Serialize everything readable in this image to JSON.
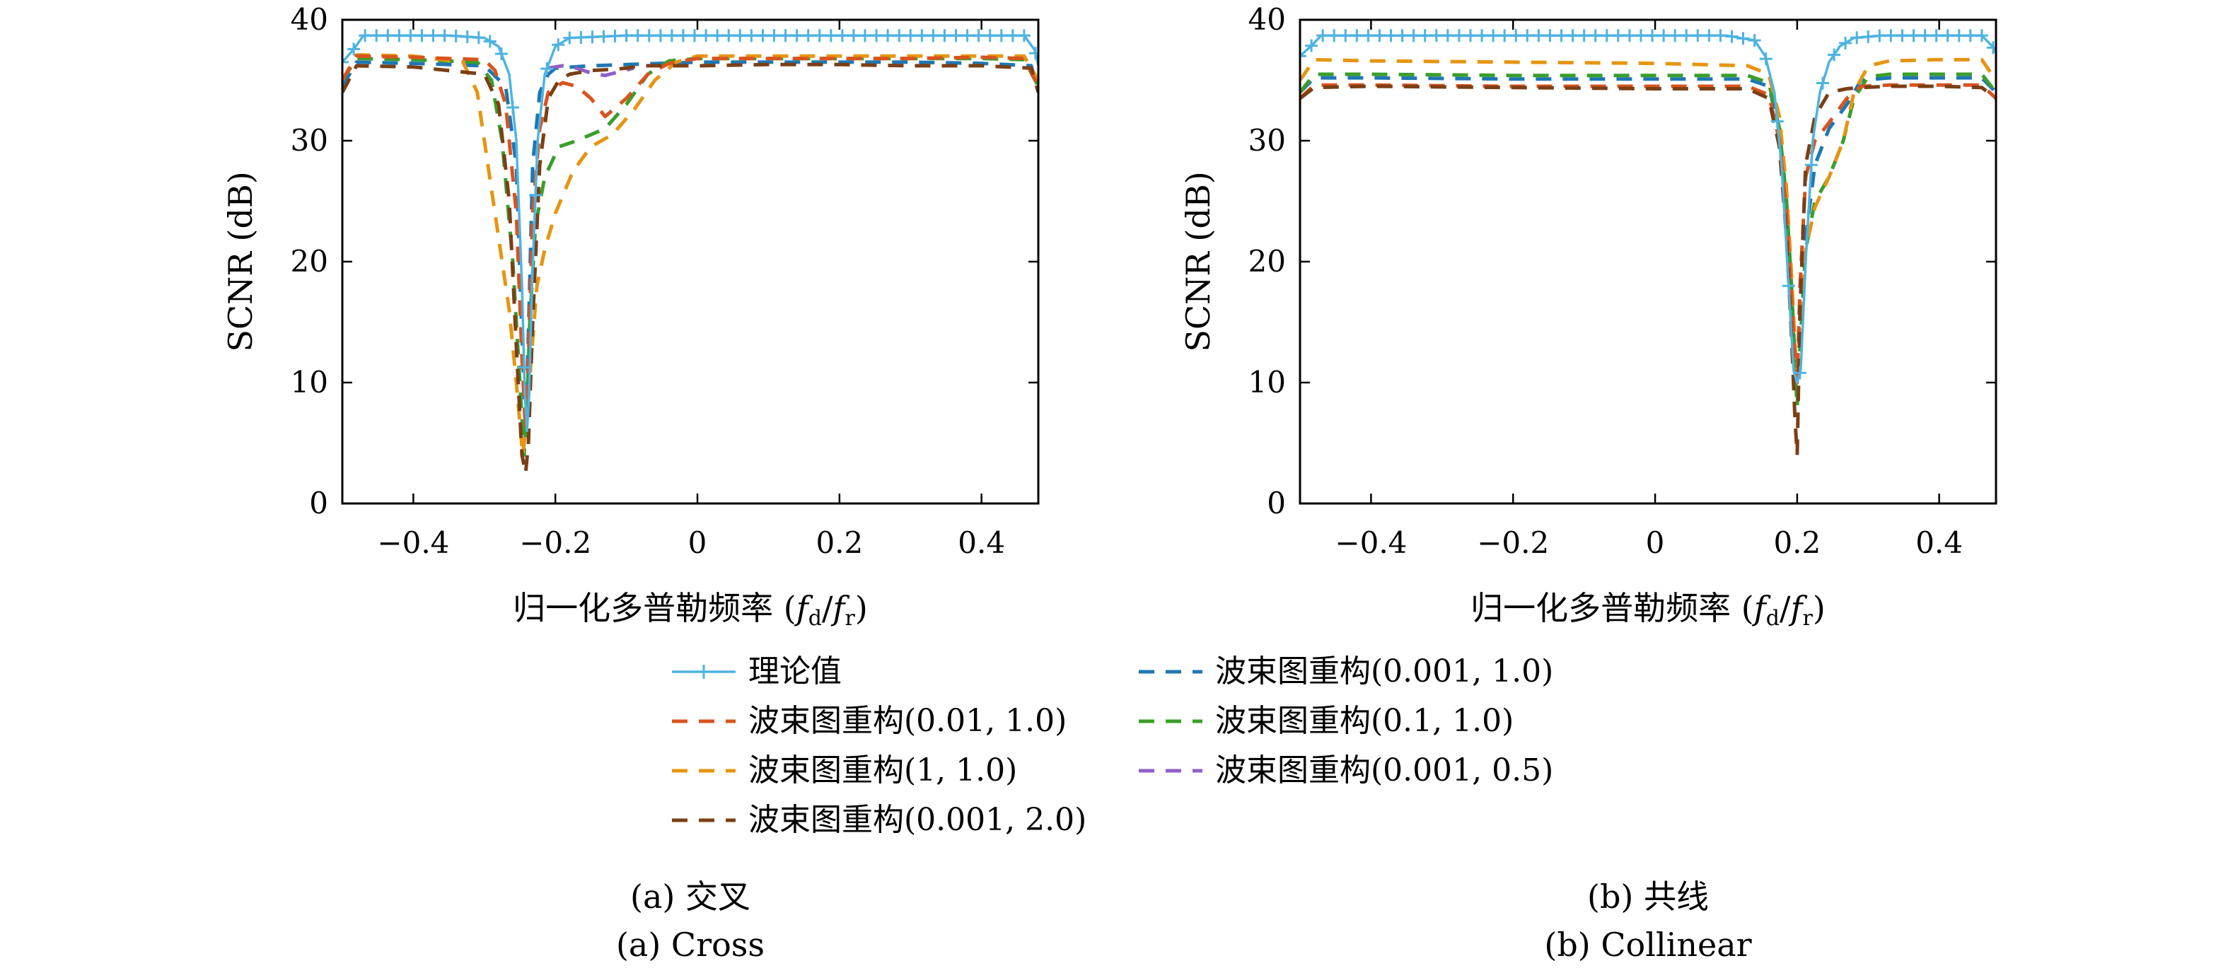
{
  "colors": {
    "theory": "#4eb3e0",
    "bf_0.01_1.0": "#d9541e",
    "bf_1_1.0": "#e69512",
    "bf_0.001_2.0": "#7b3f15",
    "bf_0.001_1.0": "#1f77b4",
    "bf_0.1_1.0": "#3a9e2a",
    "bf_0.001_0.5": "#8f5fc6"
  },
  "legend": {
    "items": [
      {
        "key": "theory",
        "label": "理论值",
        "style": "solid-marker"
      },
      {
        "key": "bf_0.001_1.0",
        "label": "波束图重构(0.001, 1.0)",
        "style": "dashed"
      },
      {
        "key": "bf_0.01_1.0",
        "label": "波束图重构(0.01, 1.0)",
        "style": "dashed"
      },
      {
        "key": "bf_0.1_1.0",
        "label": "波束图重构(0.1, 1.0)",
        "style": "dashed"
      },
      {
        "key": "bf_1_1.0",
        "label": "波束图重构(1, 1.0)",
        "style": "dashed"
      },
      {
        "key": "bf_0.001_0.5",
        "label": "波束图重构(0.001, 0.5)",
        "style": "dashed"
      },
      {
        "key": "bf_0.001_2.0",
        "label": "波束图重构(0.001, 2.0)",
        "style": "dashed"
      }
    ]
  },
  "captions": {
    "a_zh": "(a) 交叉",
    "a_en": "(a) Cross",
    "b_zh": "(b) 共线",
    "b_en": "(b) Collinear"
  },
  "chart_data": [
    {
      "type": "line",
      "panel": "a",
      "xlabel": "归一化多普勒频率 (f_d/f_r)",
      "ylabel": "SCNR (dB)",
      "xlim": [
        -0.5,
        0.48
      ],
      "ylim": [
        0,
        40
      ],
      "xticks": [
        -0.4,
        -0.2,
        0,
        0.2,
        0.4
      ],
      "xtick_labels": [
        "−0.4",
        "−0.2",
        "0",
        "0.2",
        "0.4"
      ],
      "yticks": [
        0,
        10,
        20,
        30,
        40
      ],
      "ytick_labels": [
        "0",
        "10",
        "20",
        "30",
        "40"
      ],
      "grid": false,
      "series": [
        {
          "key": "theory",
          "name": "理论值",
          "x": [
            -0.5,
            -0.485,
            -0.47,
            -0.4,
            -0.35,
            -0.3,
            -0.28,
            -0.265,
            -0.255,
            -0.247,
            -0.243,
            -0.24,
            -0.237,
            -0.233,
            -0.225,
            -0.215,
            -0.2,
            -0.18,
            -0.1,
            0,
            0.1,
            0.2,
            0.3,
            0.4,
            0.46,
            0.475,
            0.48
          ],
          "y": [
            36.5,
            37.5,
            38.7,
            38.7,
            38.7,
            38.5,
            37.8,
            35.5,
            30,
            18,
            9,
            6,
            9,
            18,
            30,
            35.5,
            37.8,
            38.5,
            38.7,
            38.7,
            38.7,
            38.7,
            38.7,
            38.7,
            38.7,
            37.5,
            36.2
          ]
        },
        {
          "key": "bf_0.001_1.0",
          "name": "波束图重构(0.001, 1.0)",
          "x": [
            -0.5,
            -0.48,
            -0.4,
            -0.3,
            -0.27,
            -0.255,
            -0.247,
            -0.242,
            -0.238,
            -0.232,
            -0.222,
            -0.21,
            -0.2,
            -0.15,
            -0.1,
            0,
            0.1,
            0.2,
            0.3,
            0.4,
            0.47,
            0.48
          ],
          "y": [
            34.5,
            36.5,
            36.4,
            36.2,
            34.5,
            28,
            14,
            6,
            14,
            28,
            34,
            35.5,
            36,
            36.2,
            36.3,
            36.5,
            36.5,
            36.5,
            36.5,
            36.4,
            36.2,
            34
          ],
          "visible_marks": false
        },
        {
          "key": "bf_0.01_1.0",
          "name": "波束图重构(0.01, 1.0)",
          "x": [
            -0.5,
            -0.48,
            -0.4,
            -0.3,
            -0.285,
            -0.27,
            -0.255,
            -0.247,
            -0.242,
            -0.238,
            -0.232,
            -0.222,
            -0.21,
            -0.19,
            -0.17,
            -0.15,
            -0.13,
            -0.1,
            -0.07,
            -0.04,
            0,
            0.1,
            0.2,
            0.3,
            0.4,
            0.46,
            0.48
          ],
          "y": [
            35,
            37,
            36.9,
            36.7,
            35.8,
            33,
            24,
            12,
            6,
            12,
            24,
            31,
            34,
            34.8,
            34.5,
            33.5,
            32,
            33.5,
            35.5,
            36.4,
            36.8,
            36.8,
            36.8,
            36.8,
            36.9,
            36.8,
            34.5
          ]
        },
        {
          "key": "bf_0.1_1.0",
          "name": "波束图重构(0.1, 1.0)",
          "x": [
            -0.5,
            -0.48,
            -0.4,
            -0.31,
            -0.29,
            -0.275,
            -0.26,
            -0.25,
            -0.244,
            -0.24,
            -0.236,
            -0.228,
            -0.215,
            -0.195,
            -0.17,
            -0.13,
            -0.1,
            -0.07,
            -0.04,
            0,
            0.1,
            0.2,
            0.3,
            0.4,
            0.46,
            0.48
          ],
          "y": [
            35,
            36.8,
            36.7,
            36.5,
            35,
            30,
            20,
            10,
            4,
            8,
            15,
            23,
            27,
            29.5,
            30,
            31,
            33,
            35.5,
            36.6,
            36.8,
            36.8,
            36.8,
            36.8,
            36.8,
            36.7,
            34.5
          ]
        },
        {
          "key": "bf_1_1.0",
          "name": "波束图重构(1, 1.0)",
          "x": [
            -0.5,
            -0.48,
            -0.4,
            -0.33,
            -0.31,
            -0.295,
            -0.28,
            -0.265,
            -0.255,
            -0.246,
            -0.24,
            -0.234,
            -0.226,
            -0.215,
            -0.2,
            -0.175,
            -0.15,
            -0.12,
            -0.09,
            -0.06,
            -0.03,
            0,
            0.1,
            0.2,
            0.3,
            0.4,
            0.46,
            0.48
          ],
          "y": [
            35,
            37.1,
            37,
            36.5,
            34,
            28,
            22,
            16,
            10,
            4,
            7,
            12,
            18,
            21,
            24,
            27.5,
            29.5,
            30.5,
            32.5,
            35,
            36.5,
            37,
            37,
            37,
            37,
            37,
            37,
            35
          ]
        },
        {
          "key": "bf_0.001_0.5",
          "name": "波束图重构(0.001, 0.5)",
          "x": [
            -0.21,
            -0.19,
            -0.17,
            -0.15,
            -0.13,
            -0.11,
            -0.09
          ],
          "y": [
            36,
            36.2,
            36,
            35.6,
            35.4,
            35.7,
            36
          ]
        },
        {
          "key": "bf_0.001_2.0",
          "name": "波束图重构(0.001, 2.0)",
          "x": [
            -0.5,
            -0.48,
            -0.4,
            -0.3,
            -0.28,
            -0.265,
            -0.255,
            -0.247,
            -0.242,
            -0.238,
            -0.232,
            -0.222,
            -0.21,
            -0.195,
            -0.18,
            -0.15,
            -0.12,
            -0.1,
            -0.08,
            -0.05,
            0,
            0.1,
            0.2,
            0.3,
            0.4,
            0.47,
            0.48
          ],
          "y": [
            34,
            36.2,
            36.1,
            35.5,
            33,
            25,
            13,
            4,
            2.5,
            5,
            15,
            28,
            33.5,
            35,
            35.5,
            35.8,
            35.9,
            36,
            36.2,
            36.2,
            36.2,
            36.3,
            36.3,
            36.2,
            36.2,
            36,
            34
          ]
        }
      ]
    },
    {
      "type": "line",
      "panel": "b",
      "xlabel": "归一化多普勒频率 (f_d/f_r)",
      "ylabel": "SCNR (dB)",
      "xlim": [
        -0.5,
        0.48
      ],
      "ylim": [
        0,
        40
      ],
      "xticks": [
        -0.4,
        -0.2,
        0,
        0.2,
        0.4
      ],
      "xtick_labels": [
        "−0.4",
        "−0.2",
        "0",
        "0.2",
        "0.4"
      ],
      "yticks": [
        0,
        10,
        20,
        30,
        40
      ],
      "ytick_labels": [
        "0",
        "10",
        "20",
        "30",
        "40"
      ],
      "grid": false,
      "series": [
        {
          "key": "theory",
          "name": "理论值",
          "x": [
            -0.5,
            -0.485,
            -0.47,
            -0.3,
            -0.1,
            0.1,
            0.14,
            0.155,
            0.168,
            0.178,
            0.188,
            0.195,
            0.2,
            0.205,
            0.212,
            0.222,
            0.232,
            0.245,
            0.26,
            0.28,
            0.32,
            0.4,
            0.46,
            0.475,
            0.48
          ],
          "y": [
            37,
            37.8,
            38.7,
            38.7,
            38.7,
            38.7,
            38.3,
            37,
            34,
            28,
            18,
            11,
            10,
            11,
            20,
            30,
            34,
            36.5,
            37.8,
            38.5,
            38.7,
            38.7,
            38.7,
            37.8,
            37.3
          ]
        },
        {
          "key": "bf_0.001_1.0",
          "name": "波束图重构(0.001, 1.0)",
          "x": [
            -0.5,
            -0.48,
            -0.4,
            -0.2,
            0,
            0.13,
            0.16,
            0.175,
            0.185,
            0.192,
            0.197,
            0.2,
            0.204,
            0.212,
            0.225,
            0.245,
            0.27,
            0.29,
            0.33,
            0.4,
            0.46,
            0.48
          ],
          "y": [
            34,
            35.2,
            35.2,
            35.1,
            35.1,
            35.1,
            34.5,
            31,
            25,
            18,
            12,
            9,
            14,
            22,
            28,
            31,
            33,
            35,
            35.2,
            35.2,
            35.2,
            34
          ],
          "visible_marks": false
        },
        {
          "key": "bf_0.01_1.0",
          "name": "波束图重构(0.01, 1.0)",
          "x": [
            -0.5,
            -0.48,
            -0.4,
            -0.2,
            0,
            0.13,
            0.16,
            0.175,
            0.185,
            0.192,
            0.197,
            0.2,
            0.204,
            0.212,
            0.225,
            0.245,
            0.27,
            0.29,
            0.33,
            0.4,
            0.46,
            0.48
          ],
          "y": [
            33.5,
            34.6,
            34.6,
            34.5,
            34.5,
            34.5,
            33.8,
            30,
            24,
            17,
            12,
            10,
            18,
            27,
            30,
            31.5,
            33.5,
            34.5,
            34.6,
            34.6,
            34.6,
            33.5
          ]
        },
        {
          "key": "bf_0.1_1.0",
          "name": "波束图重构(0.1, 1.0)",
          "x": [
            -0.5,
            -0.48,
            -0.4,
            -0.2,
            0,
            0.13,
            0.16,
            0.175,
            0.185,
            0.192,
            0.197,
            0.2,
            0.204,
            0.212,
            0.225,
            0.245,
            0.265,
            0.28,
            0.3,
            0.33,
            0.4,
            0.46,
            0.48
          ],
          "y": [
            34,
            35.5,
            35.5,
            35.4,
            35.4,
            35.4,
            34.8,
            31,
            25,
            18,
            11,
            8,
            13,
            21,
            25,
            27,
            30,
            33.5,
            35.3,
            35.5,
            35.5,
            35.5,
            34
          ]
        },
        {
          "key": "bf_1_1.0",
          "name": "波束图重构(1, 1.0)",
          "x": [
            -0.5,
            -0.48,
            -0.4,
            -0.2,
            0,
            0.13,
            0.16,
            0.175,
            0.185,
            0.192,
            0.197,
            0.2,
            0.204,
            0.212,
            0.225,
            0.245,
            0.265,
            0.28,
            0.3,
            0.33,
            0.4,
            0.46,
            0.48
          ],
          "y": [
            35,
            36.7,
            36.6,
            36.5,
            36.4,
            36.2,
            35.5,
            32,
            26,
            19,
            13,
            11,
            15,
            21,
            24.5,
            27,
            30,
            34,
            36.2,
            36.6,
            36.7,
            36.7,
            35
          ]
        },
        {
          "key": "bf_0.001_2.0",
          "name": "波束图重构(0.001, 2.0)",
          "x": [
            -0.5,
            -0.48,
            -0.4,
            -0.2,
            0,
            0.13,
            0.16,
            0.175,
            0.185,
            0.192,
            0.197,
            0.2,
            0.204,
            0.212,
            0.225,
            0.245,
            0.27,
            0.29,
            0.33,
            0.4,
            0.46,
            0.48
          ],
          "y": [
            33.5,
            34.4,
            34.5,
            34.4,
            34.3,
            34.3,
            33.5,
            29.5,
            22,
            14,
            7,
            4,
            16,
            28,
            32,
            34,
            34.3,
            34.4,
            34.5,
            34.5,
            34.4,
            33.5
          ]
        }
      ]
    }
  ]
}
